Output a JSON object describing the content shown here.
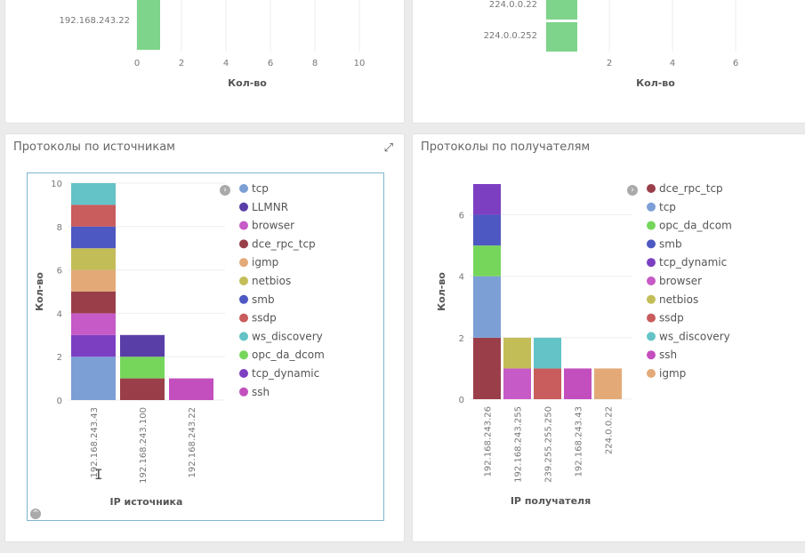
{
  "top_left": {
    "ylabel_row": "192.168.243.22",
    "xticks": [
      "0",
      "2",
      "4",
      "6",
      "8",
      "10"
    ],
    "xlabel": "Кол-во"
  },
  "top_right": {
    "ylabel_rows": [
      "224.0.0.22",
      "224.0.0.252"
    ],
    "xticks": [
      "2",
      "4",
      "6"
    ],
    "xlabel": "Кол-во"
  },
  "panels": {
    "left_title": "Протоколы по источникам",
    "right_title": "Протоколы по получателям"
  },
  "colors": {
    "tcp": "#7c9fd6",
    "LLMNR": "#5a3ea8",
    "browser": "#c65ac6",
    "dce_rpc_tcp": "#9a3f4a",
    "igmp": "#e3aa78",
    "netbios": "#c3bd58",
    "smb": "#4e58c2",
    "ssdp": "#c95c5c",
    "ws_discovery": "#63c3c6",
    "opc_da_dcom": "#76d65c",
    "tcp_dynamic": "#7d3fc2",
    "ssh": "#c34fbf",
    "top_bar": "#7ed48a"
  },
  "chart_data": [
    {
      "type": "bar",
      "title": "Протоколы по источникам",
      "xlabel": "IP источника",
      "ylabel": "Кол-во",
      "ylim": [
        0,
        10
      ],
      "yticks": [
        "0",
        "2",
        "4",
        "6",
        "8",
        "10"
      ],
      "stacked": true,
      "categories": [
        "192.168.243.43",
        "192.168.243.100",
        "192.168.243.22"
      ],
      "legend": [
        "tcp",
        "LLMNR",
        "browser",
        "dce_rpc_tcp",
        "igmp",
        "netbios",
        "smb",
        "ssdp",
        "ws_discovery",
        "opc_da_dcom",
        "tcp_dynamic",
        "ssh"
      ],
      "series": [
        {
          "name": "tcp",
          "values": [
            2,
            0,
            0
          ]
        },
        {
          "name": "tcp_dynamic",
          "values": [
            1,
            0,
            0
          ]
        },
        {
          "name": "browser",
          "values": [
            1,
            0,
            0
          ]
        },
        {
          "name": "dce_rpc_tcp",
          "values": [
            1,
            1,
            0
          ]
        },
        {
          "name": "igmp",
          "values": [
            1,
            0,
            0
          ]
        },
        {
          "name": "netbios",
          "values": [
            1,
            0,
            0
          ]
        },
        {
          "name": "smb",
          "values": [
            1,
            0,
            0
          ]
        },
        {
          "name": "ssdp",
          "values": [
            1,
            0,
            0
          ]
        },
        {
          "name": "ws_discovery",
          "values": [
            1,
            0,
            0
          ]
        },
        {
          "name": "opc_da_dcom",
          "values": [
            0,
            1,
            0
          ]
        },
        {
          "name": "LLMNR",
          "values": [
            0,
            1,
            0
          ]
        },
        {
          "name": "ssh",
          "values": [
            0,
            0,
            1
          ]
        }
      ],
      "legend_position": "right"
    },
    {
      "type": "bar",
      "title": "Протоколы по получателям",
      "xlabel": "IP получателя",
      "ylabel": "Кол-во",
      "ylim": [
        0,
        7
      ],
      "yticks": [
        "0",
        "2",
        "4",
        "6"
      ],
      "stacked": true,
      "categories": [
        "192.168.243.26",
        "192.168.243.255",
        "239.255.255.250",
        "192.168.243.43",
        "224.0.0.22"
      ],
      "legend": [
        "dce_rpc_tcp",
        "tcp",
        "opc_da_dcom",
        "smb",
        "tcp_dynamic",
        "browser",
        "netbios",
        "ssdp",
        "ws_discovery",
        "ssh",
        "igmp"
      ],
      "series": [
        {
          "name": "dce_rpc_tcp",
          "values": [
            2,
            0,
            0,
            0,
            0
          ]
        },
        {
          "name": "tcp",
          "values": [
            2,
            0,
            0,
            0,
            0
          ]
        },
        {
          "name": "opc_da_dcom",
          "values": [
            1,
            0,
            0,
            0,
            0
          ]
        },
        {
          "name": "smb",
          "values": [
            1,
            0,
            0,
            0,
            0
          ]
        },
        {
          "name": "tcp_dynamic",
          "values": [
            1,
            0,
            0,
            0,
            0
          ]
        },
        {
          "name": "browser",
          "values": [
            0,
            1,
            0,
            0,
            0
          ]
        },
        {
          "name": "netbios",
          "values": [
            0,
            1,
            0,
            0,
            0
          ]
        },
        {
          "name": "ssdp",
          "values": [
            0,
            0,
            1,
            0,
            0
          ]
        },
        {
          "name": "ws_discovery",
          "values": [
            0,
            0,
            1,
            0,
            0
          ]
        },
        {
          "name": "ssh",
          "values": [
            0,
            0,
            0,
            1,
            0
          ]
        },
        {
          "name": "igmp",
          "values": [
            0,
            0,
            0,
            0,
            1
          ]
        }
      ],
      "legend_position": "right"
    }
  ]
}
